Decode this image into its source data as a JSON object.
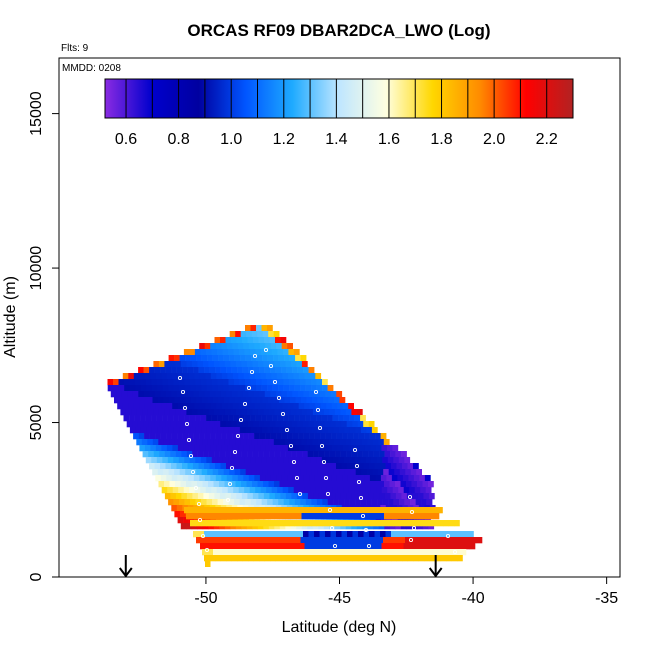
{
  "chart_data": {
    "type": "heatmap",
    "title": "ORCAS RF09 DBAR2DCA_LWO (Log)",
    "flights_label": "Flts: 9",
    "date_label": "MMDD: 0208",
    "xlabel": "Latitude (deg N)",
    "ylabel": "Altitude (m)",
    "xlim": [
      -55.5,
      -34.5
    ],
    "ylim": [
      0,
      16800
    ],
    "x_ticks": [
      -50,
      -45,
      -40,
      -35
    ],
    "x_tick_labels": [
      "-50",
      "-45",
      "-40",
      "-35"
    ],
    "y_ticks": [
      0,
      5000,
      10000,
      15000
    ],
    "y_tick_labels": [
      "0",
      "5000",
      "10000",
      "15000"
    ],
    "colorbar": {
      "range": [
        0.52,
        2.3
      ],
      "ticks": [
        0.6,
        0.8,
        1.0,
        1.2,
        1.4,
        1.6,
        1.8,
        2.0,
        2.2
      ],
      "tick_labels": [
        "0.6",
        "0.8",
        "1.0",
        "1.2",
        "1.4",
        "1.6",
        "1.8",
        "2.0",
        "2.2"
      ],
      "colors": [
        "#8a2be2",
        "#0000cd",
        "#0000a0",
        "#0055ff",
        "#1eaaff",
        "#bfe6ff",
        "#ffffe0",
        "#ffd700",
        "#ff8c00",
        "#ff0000",
        "#b22222"
      ]
    },
    "markers": [
      {
        "lat": -53.0,
        "alt": 0
      },
      {
        "lat": -41.4,
        "alt": 0
      }
    ],
    "legend": "top (horizontal colorbar)",
    "grid": false
  }
}
